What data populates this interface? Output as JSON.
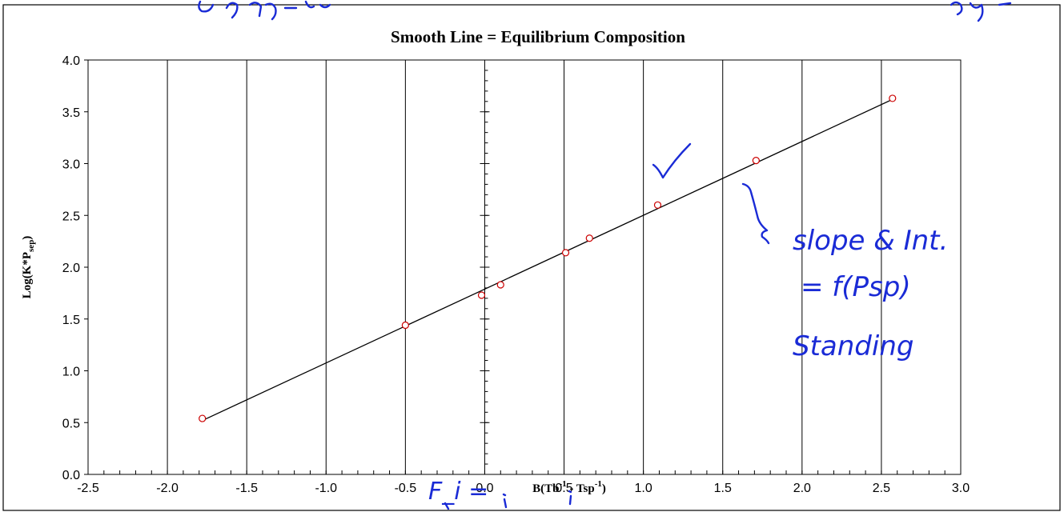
{
  "chart_data": {
    "type": "scatter",
    "title": "Smooth Line = Equilibrium Composition",
    "xlabel": {
      "main": "B(Tb",
      "sup1": "-1",
      "mid": " - Tsp",
      "sup2": "-1",
      "end": ")"
    },
    "ylabel": {
      "main": "Log(K*P",
      "sub": "sep",
      "end": ")"
    },
    "xlim": [
      -2.5,
      3.0
    ],
    "ylim": [
      0.0,
      4.0
    ],
    "xticks": [
      "-2.5",
      "-2.0",
      "-1.5",
      "-1.0",
      "-0.5",
      "0.0",
      "0.5",
      "1.0",
      "1.5",
      "2.0",
      "2.5",
      "3.0"
    ],
    "yticks": [
      "0.0",
      "0.5",
      "1.0",
      "1.5",
      "2.0",
      "2.5",
      "3.0",
      "3.5",
      "4.0"
    ],
    "grid": "vertical",
    "series": [
      {
        "kind": "points",
        "marker": "open-circle",
        "color": "#cc0000",
        "x": [
          -1.78,
          -0.5,
          -0.02,
          0.1,
          0.51,
          0.66,
          1.09,
          1.71,
          2.57
        ],
        "y": [
          0.54,
          1.44,
          1.73,
          1.83,
          2.14,
          2.28,
          2.6,
          3.03,
          3.63
        ]
      },
      {
        "kind": "fit-line",
        "color": "#000000",
        "x": [
          -1.78,
          2.57
        ],
        "y": [
          0.52,
          3.62
        ]
      }
    ]
  },
  "annotations": {
    "text_lines": [
      "slope & Int.",
      "= f(Psp)",
      "Standing"
    ],
    "equation": "F_i = "
  }
}
